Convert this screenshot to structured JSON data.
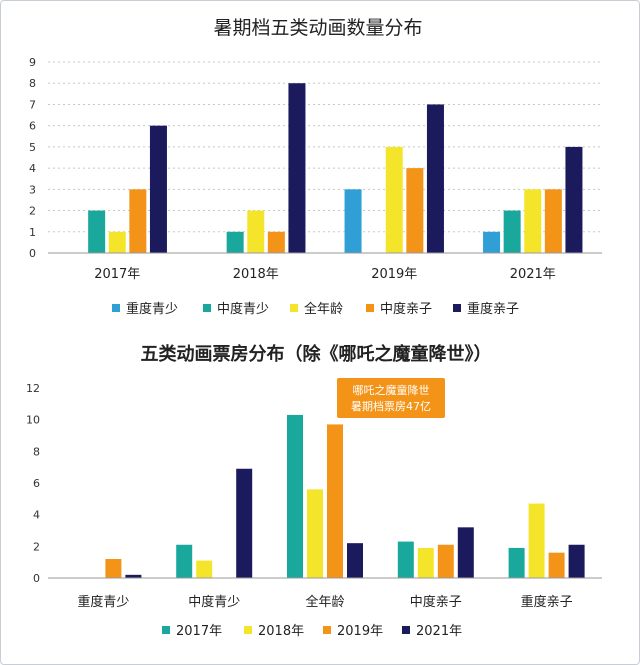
{
  "chart_data": [
    {
      "type": "bar",
      "title": "暑期档五类动画数量分布",
      "categories": [
        "2017年",
        "2018年",
        "2019年",
        "2021年"
      ],
      "ylim": [
        0,
        9
      ],
      "yticks": [
        "0",
        "1",
        "2",
        "3",
        "4",
        "5",
        "6",
        "7",
        "8",
        "9"
      ],
      "grid": true,
      "legend_position": "bottom",
      "series": [
        {
          "name": "重度青少",
          "color": "#2f9fd6",
          "values": [
            0,
            0,
            3,
            1
          ]
        },
        {
          "name": "中度青少",
          "color": "#1aa89c",
          "values": [
            2,
            1,
            0,
            2
          ]
        },
        {
          "name": "全年龄",
          "color": "#f5e52a",
          "values": [
            1,
            2,
            5,
            3
          ]
        },
        {
          "name": "中度亲子",
          "color": "#f39419",
          "values": [
            3,
            1,
            4,
            3
          ]
        },
        {
          "name": "重度亲子",
          "color": "#1a1a5c",
          "values": [
            6,
            8,
            7,
            5
          ]
        }
      ]
    },
    {
      "type": "bar",
      "title": "五类动画票房分布（除《哪吒之魔童降世》）",
      "categories": [
        "重度青少",
        "中度青少",
        "全年龄",
        "中度亲子",
        "重度亲子"
      ],
      "ylim": [
        0,
        12
      ],
      "yticks": [
        "0",
        "2",
        "4",
        "6",
        "8",
        "10",
        "12"
      ],
      "grid": false,
      "legend_position": "bottom",
      "series": [
        {
          "name": "2017年",
          "color": "#1aa89c",
          "values": [
            0,
            2.1,
            10.3,
            2.3,
            1.9
          ]
        },
        {
          "name": "2018年",
          "color": "#f5e52a",
          "values": [
            0,
            1.1,
            5.6,
            1.9,
            4.7
          ]
        },
        {
          "name": "2019年",
          "color": "#f39419",
          "values": [
            1.2,
            0,
            9.7,
            2.1,
            1.6
          ]
        },
        {
          "name": "2021年",
          "color": "#1a1a5c",
          "values": [
            0.2,
            6.9,
            2.2,
            3.2,
            2.1
          ]
        }
      ],
      "annotation": {
        "lines": [
          "哪吒之魔童降世",
          "暑期档票房47亿"
        ],
        "color": "#f39419"
      }
    }
  ]
}
